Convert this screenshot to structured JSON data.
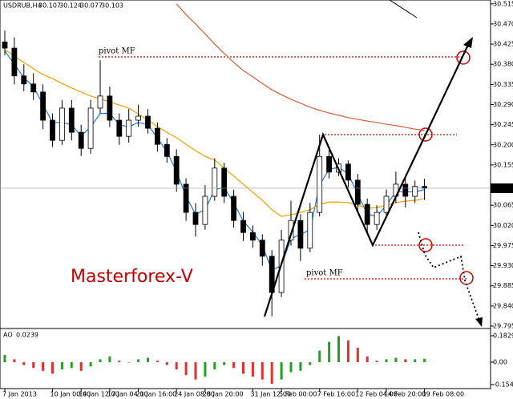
{
  "chart_data": [
    {
      "type": "candlestick",
      "symbol": "USDRUB,H4",
      "categories": [
        "7 Jan 2013",
        null,
        null,
        null,
        null,
        "10 Jan 00:00",
        null,
        null,
        "14 Jan 12:00",
        null,
        null,
        "17 Jan 04:00",
        null,
        null,
        "21 Jan 16:00",
        null,
        null,
        null,
        "24 Jan 08:00",
        null,
        null,
        "28 Jan 20:00",
        null,
        null,
        null,
        null,
        "31 Jan 12:00",
        null,
        null,
        "5 Feb 00:00",
        null,
        null,
        null,
        "7 Feb 16:00",
        null,
        null,
        null,
        "12 Feb 04:00",
        null,
        null,
        "14 Feb 20:00",
        null,
        null,
        null,
        "19 Feb 08:00"
      ],
      "open": [
        30.43,
        30.416,
        30.354,
        30.336,
        30.318,
        30.255,
        30.21,
        30.282,
        30.228,
        30.192,
        30.282,
        30.309,
        30.255,
        30.219,
        30.255,
        30.264,
        30.237,
        30.201,
        30.174,
        30.112,
        30.049,
        30.022,
        30.085,
        30.148,
        30.085,
        30.031,
        30.004,
        29.987,
        29.951,
        29.87,
        29.987,
        30.031,
        29.969,
        30.049,
        30.174,
        30.139,
        30.157,
        30.121,
        30.067,
        30.022,
        30.049,
        30.085,
        30.112,
        30.085,
        30.107
      ],
      "high": [
        30.455,
        30.44,
        30.38,
        30.36,
        30.335,
        30.27,
        30.3,
        30.3,
        30.245,
        30.3,
        30.389,
        30.33,
        30.27,
        30.28,
        30.29,
        30.28,
        30.25,
        30.215,
        30.19,
        30.125,
        30.07,
        30.11,
        30.17,
        30.16,
        30.1,
        30.05,
        30.02,
        30.0,
        29.965,
        30.01,
        30.075,
        30.045,
        30.07,
        30.223,
        30.19,
        30.17,
        30.165,
        30.135,
        30.08,
        30.065,
        30.1,
        30.14,
        30.13,
        30.12,
        30.124
      ],
      "low": [
        30.4,
        30.335,
        30.32,
        30.3,
        30.235,
        30.195,
        30.2,
        30.21,
        30.175,
        30.18,
        30.27,
        30.24,
        30.2,
        30.205,
        30.24,
        30.225,
        30.185,
        30.16,
        30.095,
        30.03,
        29.995,
        30.01,
        30.075,
        30.07,
        30.015,
        29.985,
        29.97,
        29.93,
        29.817,
        29.86,
        29.975,
        29.94,
        29.96,
        30.04,
        30.125,
        30.13,
        30.105,
        30.05,
        30.0,
        30.01,
        30.035,
        30.07,
        30.06,
        30.07,
        30.077
      ],
      "close": [
        30.416,
        30.354,
        30.336,
        30.318,
        30.255,
        30.21,
        30.282,
        30.228,
        30.192,
        30.282,
        30.309,
        30.255,
        30.219,
        30.255,
        30.264,
        30.237,
        30.201,
        30.174,
        30.112,
        30.049,
        30.022,
        30.085,
        30.148,
        30.085,
        30.031,
        30.004,
        29.987,
        29.951,
        29.87,
        29.987,
        30.031,
        29.969,
        30.049,
        30.174,
        30.139,
        30.157,
        30.121,
        30.067,
        30.022,
        30.049,
        30.085,
        30.112,
        30.085,
        30.107,
        30.103
      ],
      "up_color": "#ffffff",
      "down_color": "#000000",
      "wick_color": "#000000",
      "series": [
        {
          "color": "#1e78d8",
          "values": [
            30.41,
            30.38,
            30.35,
            30.33,
            30.29,
            30.25,
            30.25,
            30.245,
            30.22,
            30.24,
            30.27,
            30.27,
            30.245,
            30.24,
            30.25,
            30.245,
            30.215,
            30.185,
            30.14,
            30.085,
            30.045,
            30.055,
            30.1,
            30.105,
            30.07,
            30.03,
            30.005,
            29.975,
            29.92,
            29.93,
            29.99,
            30.0,
            30.01,
            30.11,
            30.145,
            30.15,
            30.135,
            30.09,
            30.045,
            30.04,
            30.065,
            30.095,
            30.095,
            30.095,
            30.1
          ]
        },
        {
          "color": "#f0a000",
          "values": [
            30.413,
            30.398,
            30.384,
            30.37,
            30.357,
            30.348,
            30.337,
            30.327,
            30.318,
            30.309,
            30.303,
            30.296,
            30.289,
            30.282,
            30.269,
            30.255,
            30.241,
            30.228,
            30.216,
            30.201,
            30.187,
            30.174,
            30.166,
            30.148,
            30.13,
            30.112,
            30.094,
            30.076,
            30.055,
            30.04,
            30.044,
            30.049,
            30.055,
            30.067,
            30.072,
            30.072,
            30.071,
            30.065,
            30.058,
            30.06,
            30.065,
            30.071,
            30.074,
            30.076,
            30.08
          ]
        },
        {
          "color": "#d0603a",
          "values": [
            null,
            null,
            null,
            null,
            null,
            null,
            null,
            null,
            null,
            null,
            null,
            null,
            null,
            null,
            null,
            null,
            null,
            null,
            30.515,
            30.491,
            30.47,
            30.448,
            30.425,
            30.404,
            30.384,
            30.366,
            30.352,
            30.337,
            30.323,
            30.312,
            30.302,
            30.293,
            30.284,
            30.277,
            30.271,
            30.266,
            30.261,
            30.257,
            30.253,
            30.25,
            30.246,
            30.243,
            30.239,
            30.235,
            30.232
          ]
        }
      ],
      "ylim": [
        29.795,
        30.52
      ],
      "yticks": [
        30.515,
        {
          "value": 30.47,
          "label": "30.470"
        },
        30.425,
        {
          "value": 30.38,
          "label": "30.380"
        },
        30.335,
        {
          "value": 30.29,
          "label": "30.290"
        },
        30.245,
        {
          "value": 30.2,
          "label": "30.200"
        },
        30.155,
        30.065,
        {
          "value": 30.02,
          "label": "30.020"
        },
        29.975,
        {
          "value": 29.93,
          "label": "29.930"
        },
        29.885,
        {
          "value": 29.84,
          "label": "29.840"
        },
        29.795
      ],
      "annotations": [
        "pivot MF",
        "pivot MF",
        "Masterforex-V"
      ]
    },
    {
      "type": "bar",
      "title": "AO",
      "values": [
        0.05,
        0.02,
        -0.02,
        -0.04,
        -0.06,
        -0.08,
        -0.05,
        -0.04,
        -0.06,
        -0.03,
        0.02,
        0.04,
        0.01,
        0.0,
        0.02,
        0.03,
        0.01,
        -0.02,
        -0.05,
        -0.09,
        -0.12,
        -0.1,
        -0.05,
        -0.02,
        -0.04,
        -0.08,
        -0.1,
        -0.12,
        -0.15,
        -0.12,
        -0.07,
        -0.06,
        -0.02,
        0.08,
        0.14,
        0.18,
        0.15,
        0.1,
        0.04,
        0.01,
        0.02,
        0.03,
        0.02,
        0.02,
        0.0239
      ],
      "up_color": "#22a022",
      "down_color": "#e03030",
      "ylim": [
        -0.1825,
        0.2217
      ],
      "yticks": [
        0.1829,
        {
          "value": 0,
          "label": "0.00"
        },
        -0.1548
      ]
    }
  ]
}
